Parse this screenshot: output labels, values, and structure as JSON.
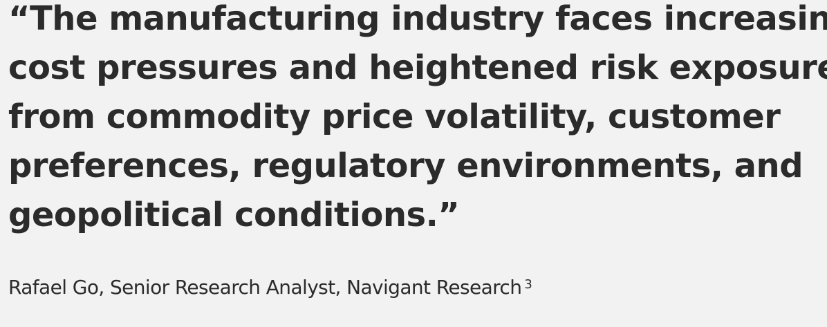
{
  "quote": {
    "lines": [
      "“The manufacturing industry faces increasing",
      "cost pressures and heightened risk exposure",
      "from commodity price volatility, customer",
      "preferences, regulatory environments, and",
      "geopolitical conditions.”"
    ],
    "attribution": "Rafael Go, Senior Research Analyst, Navigant Research",
    "footnote": "3"
  }
}
